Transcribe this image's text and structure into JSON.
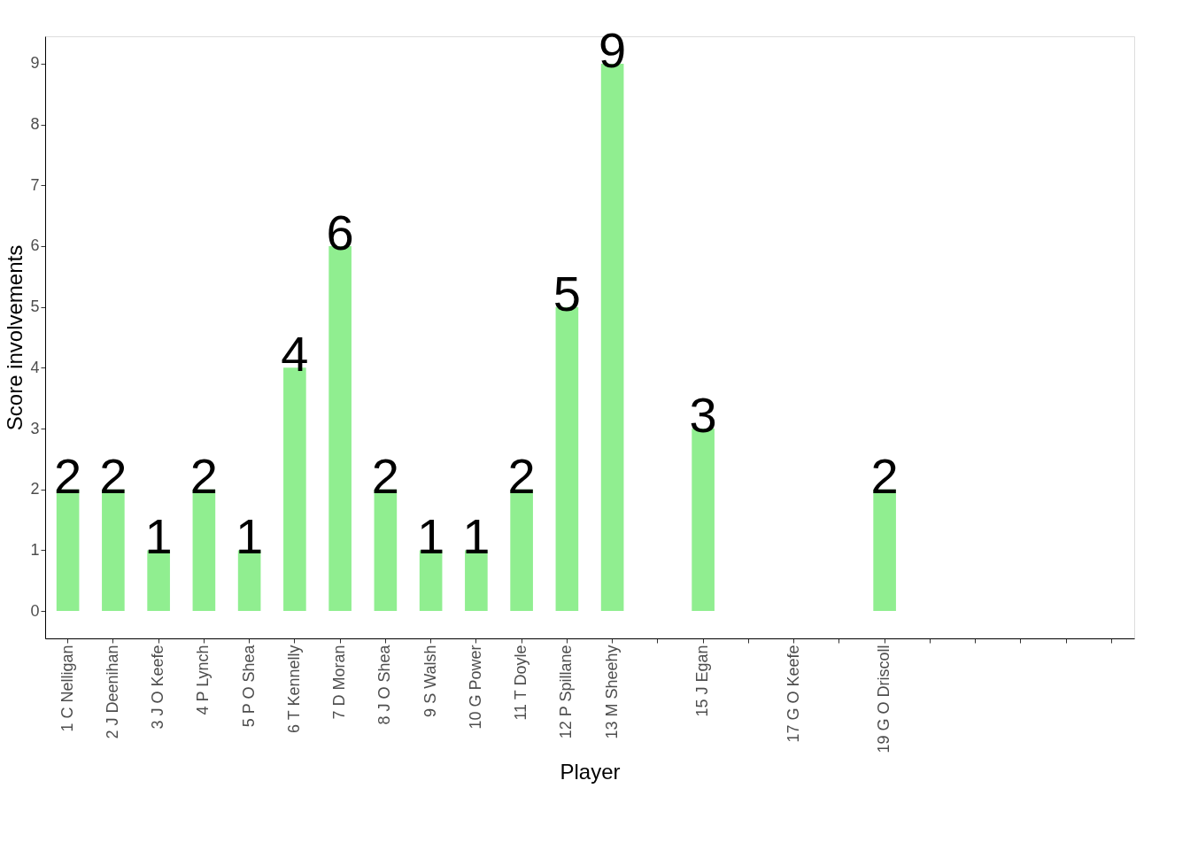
{
  "chart_data": {
    "type": "bar",
    "xlabel": "Player",
    "ylabel": "Score involvements",
    "categories": [
      "1 C Nelligan",
      "2 J Deenihan",
      "3 J O Keefe",
      "4 P Lynch",
      "5 P O Shea",
      "6 T Kennelly",
      "7 D Moran",
      "8 J O Shea",
      "9 S Walsh",
      "10 G Power",
      "11 T Doyle",
      "12 P Spillane",
      "13 M Sheehy",
      null,
      "15 J Egan",
      null,
      "17 G O Keefe",
      null,
      "19 G O Driscoll",
      null,
      null,
      null,
      null,
      null
    ],
    "values": [
      2,
      2,
      1,
      2,
      1,
      4,
      6,
      2,
      1,
      1,
      2,
      5,
      9,
      null,
      3,
      null,
      null,
      null,
      2,
      null,
      null,
      null,
      null,
      null
    ],
    "color": "#90ee90",
    "ylim": [
      -0.45,
      9.45
    ],
    "yticks": [
      0,
      1,
      2,
      3,
      4,
      5,
      6,
      7,
      8,
      9
    ],
    "data_labels": true,
    "grid": false
  }
}
